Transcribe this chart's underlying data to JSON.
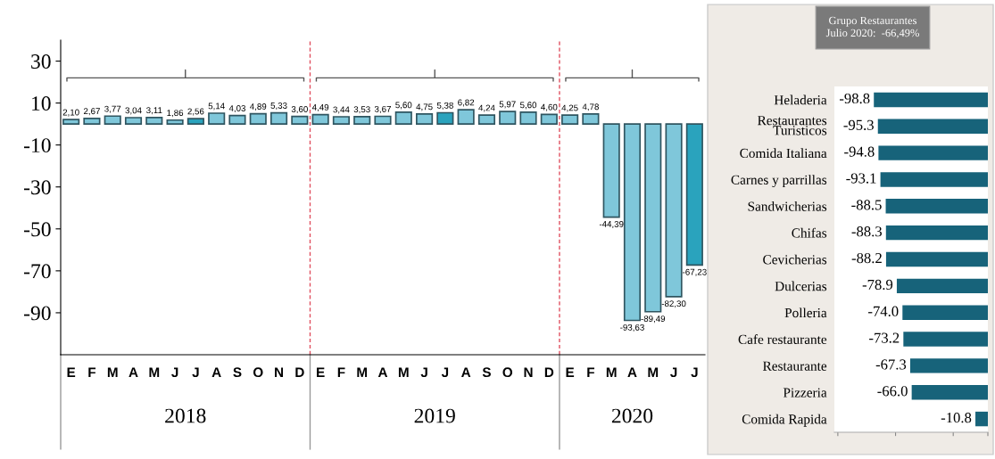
{
  "chart_data": [
    {
      "type": "bar",
      "categories": [
        "E",
        "F",
        "M",
        "A",
        "M",
        "J",
        "J",
        "A",
        "S",
        "O",
        "N",
        "D",
        "E",
        "F",
        "M",
        "A",
        "M",
        "J",
        "J",
        "A",
        "S",
        "O",
        "N",
        "D",
        "E",
        "F",
        "M",
        "A",
        "M",
        "J",
        "J"
      ],
      "values": [
        2.1,
        2.67,
        3.77,
        3.04,
        3.11,
        1.86,
        2.56,
        5.14,
        4.03,
        4.89,
        5.33,
        3.6,
        4.49,
        3.44,
        3.53,
        3.67,
        5.6,
        4.75,
        5.38,
        6.82,
        4.24,
        5.97,
        5.6,
        4.6,
        4.25,
        4.78,
        -44.39,
        -93.63,
        -89.49,
        -82.3,
        -67.23
      ],
      "value_labels": [
        "2,10",
        "2,67",
        "3,77",
        "3,04",
        "3,11",
        "1,86",
        "2,56",
        "5,14",
        "4,03",
        "4,89",
        "5,33",
        "3,60",
        "4,49",
        "3,44",
        "3,53",
        "3,67",
        "5,60",
        "4,75",
        "5,38",
        "6,82",
        "4,24",
        "5,97",
        "5,60",
        "4,60",
        "4,25",
        "4,78",
        "-44,39",
        "-93,63",
        "-89,49",
        "-82,30",
        "-67,23"
      ],
      "colors": [
        "#7fc7da",
        "#7fc7da",
        "#7fc7da",
        "#7fc7da",
        "#7fc7da",
        "#7fc7da",
        "#2aa3bd",
        "#7fc7da",
        "#7fc7da",
        "#7fc7da",
        "#7fc7da",
        "#7fc7da",
        "#7fc7da",
        "#7fc7da",
        "#7fc7da",
        "#7fc7da",
        "#7fc7da",
        "#7fc7da",
        "#2aa3bd",
        "#7fc7da",
        "#7fc7da",
        "#7fc7da",
        "#7fc7da",
        "#7fc7da",
        "#7fc7da",
        "#7fc7da",
        "#7fc7da",
        "#7fc7da",
        "#7fc7da",
        "#7fc7da",
        "#2aa3bd"
      ],
      "ylim": [
        -110,
        40
      ],
      "yticks": [
        30,
        10,
        -10,
        -30,
        -50,
        -70,
        -90
      ],
      "grid": false,
      "annotations": [
        "2018",
        "2019",
        "2020"
      ]
    },
    {
      "type": "bar",
      "orientation": "horizontal",
      "title": "Grupo Restaurantes\nJulio 2020:  -66,49%",
      "categories": [
        "Heladeria",
        "Restaurantes\nTuristicos",
        "Comida Italiana",
        "Carnes y parrillas",
        "Sandwicherias",
        "Chifas",
        "Cevicherias",
        "Dulcerias",
        "Polleria",
        "Cafe restaurante",
        "Restaurante",
        "Pizzeria",
        "Comida Rapida"
      ],
      "values": [
        -98.8,
        -95.3,
        -94.8,
        -93.1,
        -88.5,
        -88.3,
        -88.2,
        -78.9,
        -74.0,
        -73.2,
        -67.3,
        -66.0,
        -10.8
      ],
      "color": "#17637a",
      "value_labels": [
        "-98.8",
        "-95.3",
        "-94.8",
        "-93.1",
        "-88.5",
        "-88.3",
        "-88.2",
        "-78.9",
        "-74.0",
        "-73.2",
        "-67.3",
        "-66.0",
        "-10.8"
      ],
      "xlim": [
        -133,
        0
      ],
      "xticks": [
        {
          "value": -130,
          "label": null
        },
        {
          "value": -80,
          "label": null
        },
        {
          "value": -30,
          "label": null
        },
        {
          "value": 0,
          "label": null
        }
      ],
      "grid": false
    }
  ]
}
